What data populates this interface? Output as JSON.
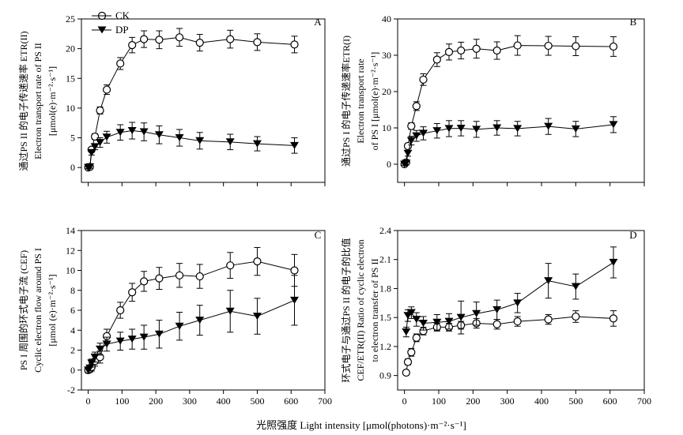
{
  "x_axis_title": "光照强度 Light intensity [μmol(photons)·m⁻²·s⁻¹]",
  "legend": {
    "ck": "CK",
    "dp": "DP"
  },
  "chart_data": [
    {
      "type": "line",
      "panel": "A",
      "ylabel_lines": [
        "通过PS II 的电子传递速率 ETR(II)",
        "Electron transport rate of PS II",
        "[μmol(e)·m⁻²·s⁻¹]"
      ],
      "xlim": [
        -20,
        700
      ],
      "ylim": [
        -2.5,
        25
      ],
      "x_ticks": [
        0,
        100,
        200,
        300,
        400,
        500,
        600,
        700
      ],
      "y_ticks": [
        0,
        5,
        10,
        15,
        20,
        25
      ],
      "show_x_tick_labels": false,
      "x": [
        0,
        5,
        10,
        20,
        35,
        55,
        95,
        130,
        165,
        210,
        270,
        330,
        420,
        500,
        610
      ],
      "series": [
        {
          "name": "CK",
          "marker": "circle-open",
          "values": [
            0,
            0.1,
            3.0,
            5.2,
            9.6,
            13.1,
            17.5,
            20.6,
            21.6,
            21.5,
            21.9,
            21.0,
            21.6,
            21.1,
            20.7
          ],
          "errors": [
            0.2,
            0.2,
            0.4,
            0.5,
            0.6,
            0.8,
            1.0,
            1.3,
            1.4,
            1.5,
            1.5,
            1.4,
            1.5,
            1.4,
            1.4
          ]
        },
        {
          "name": "DP",
          "marker": "triangle-down-filled",
          "values": [
            0,
            0.1,
            2.5,
            3.5,
            4.2,
            5.1,
            5.9,
            6.2,
            6.0,
            5.5,
            5.0,
            4.5,
            4.3,
            4.0,
            3.7
          ],
          "errors": [
            0.2,
            0.2,
            0.4,
            0.5,
            0.8,
            1.0,
            1.3,
            1.4,
            1.5,
            1.5,
            1.4,
            1.4,
            1.3,
            1.2,
            1.3
          ]
        }
      ]
    },
    {
      "type": "line",
      "panel": "B",
      "ylabel_lines": [
        "通过PS I 的电子传递速率ETR(I)",
        "Electron transport rate",
        "of PS I [μmol(e)·m⁻²·s⁻¹]"
      ],
      "xlim": [
        -20,
        700
      ],
      "ylim": [
        -5,
        40
      ],
      "x_ticks": [
        0,
        100,
        200,
        300,
        400,
        500,
        600,
        700
      ],
      "y_ticks": [
        0,
        10,
        20,
        30,
        40
      ],
      "show_x_tick_labels": false,
      "x": [
        0,
        5,
        10,
        20,
        35,
        55,
        95,
        130,
        165,
        210,
        270,
        330,
        420,
        500,
        610
      ],
      "series": [
        {
          "name": "CK",
          "marker": "circle-open",
          "values": [
            0,
            0.5,
            5.0,
            10.5,
            16.0,
            23.3,
            28.8,
            30.9,
            31.3,
            31.8,
            31.3,
            32.7,
            32.6,
            32.5,
            32.4
          ],
          "errors": [
            0.3,
            0.4,
            0.6,
            0.9,
            1.2,
            1.6,
            1.9,
            2.2,
            2.3,
            2.6,
            2.4,
            2.7,
            2.6,
            2.6,
            2.7
          ]
        },
        {
          "name": "DP",
          "marker": "triangle-down-filled",
          "values": [
            0,
            0.3,
            3.0,
            6.5,
            7.8,
            8.5,
            9.2,
            9.8,
            9.9,
            9.6,
            10.0,
            9.8,
            10.4,
            9.7,
            10.9
          ],
          "errors": [
            0.3,
            0.4,
            0.8,
            1.2,
            1.5,
            1.8,
            2.0,
            2.2,
            2.1,
            2.2,
            2.0,
            2.0,
            2.2,
            2.1,
            2.2
          ]
        }
      ]
    },
    {
      "type": "line",
      "panel": "C",
      "ylabel_lines": [
        "PS I 周围的环式电子流 (CEF)",
        "Cyclic electron flow around PS I",
        "[μmol (e)·m⁻²·s⁻¹]"
      ],
      "xlim": [
        -20,
        700
      ],
      "ylim": [
        -2,
        14
      ],
      "x_ticks": [
        0,
        100,
        200,
        300,
        400,
        500,
        600,
        700
      ],
      "y_ticks": [
        -2,
        0,
        2,
        4,
        6,
        8,
        10,
        12,
        14
      ],
      "show_x_tick_labels": true,
      "x": [
        0,
        5,
        10,
        20,
        35,
        55,
        95,
        130,
        165,
        210,
        270,
        330,
        420,
        500,
        610
      ],
      "series": [
        {
          "name": "CK",
          "marker": "circle-open",
          "values": [
            0,
            0.1,
            0.3,
            0.9,
            1.3,
            3.4,
            6.0,
            7.8,
            8.9,
            9.2,
            9.5,
            9.4,
            10.5,
            10.9,
            10.0
          ],
          "errors": [
            0.3,
            0.3,
            0.4,
            0.5,
            0.6,
            0.7,
            0.8,
            0.9,
            1.0,
            1.1,
            1.2,
            1.2,
            1.3,
            1.4,
            1.6
          ]
        },
        {
          "name": "DP",
          "marker": "triangle-down-filled",
          "values": [
            0,
            0.2,
            0.7,
            1.3,
            2.1,
            2.6,
            2.9,
            3.1,
            3.3,
            3.6,
            4.4,
            5.0,
            5.9,
            5.4,
            7.0
          ],
          "errors": [
            0.3,
            0.3,
            0.4,
            0.5,
            0.6,
            0.7,
            0.9,
            1.0,
            1.2,
            1.4,
            1.4,
            1.5,
            2.1,
            1.8,
            2.5
          ]
        }
      ]
    },
    {
      "type": "line",
      "panel": "D",
      "ylabel_lines": [
        "环式电子与通过PS II 的电子的比值",
        "CEF/ETR(II) Ratio of cyclic electron",
        "to electron transfer of PS II"
      ],
      "xlim": [
        -20,
        700
      ],
      "ylim": [
        0.75,
        2.4
      ],
      "x_ticks": [
        0,
        100,
        200,
        300,
        400,
        500,
        600,
        700
      ],
      "y_ticks": [
        0.9,
        1.2,
        1.5,
        1.8,
        2.1,
        2.4
      ],
      "show_x_tick_labels": true,
      "x": [
        5,
        10,
        20,
        35,
        55,
        95,
        130,
        165,
        210,
        270,
        330,
        420,
        500,
        610
      ],
      "series": [
        {
          "name": "CK",
          "marker": "circle-open",
          "values": [
            0.93,
            1.04,
            1.14,
            1.29,
            1.36,
            1.4,
            1.4,
            1.42,
            1.44,
            1.43,
            1.46,
            1.48,
            1.51,
            1.49
          ],
          "errors": [
            0.02,
            0.03,
            0.04,
            0.04,
            0.04,
            0.04,
            0.04,
            0.04,
            0.05,
            0.05,
            0.05,
            0.05,
            0.06,
            0.08
          ]
        },
        {
          "name": "DP",
          "marker": "triangle-down-filled",
          "values": [
            1.35,
            1.52,
            1.55,
            1.48,
            1.44,
            1.45,
            1.46,
            1.5,
            1.54,
            1.58,
            1.65,
            1.88,
            1.82,
            2.07
          ],
          "errors": [
            0.05,
            0.06,
            0.06,
            0.07,
            0.07,
            0.08,
            0.08,
            0.17,
            0.12,
            0.1,
            0.1,
            0.18,
            0.13,
            0.16
          ]
        }
      ]
    }
  ]
}
